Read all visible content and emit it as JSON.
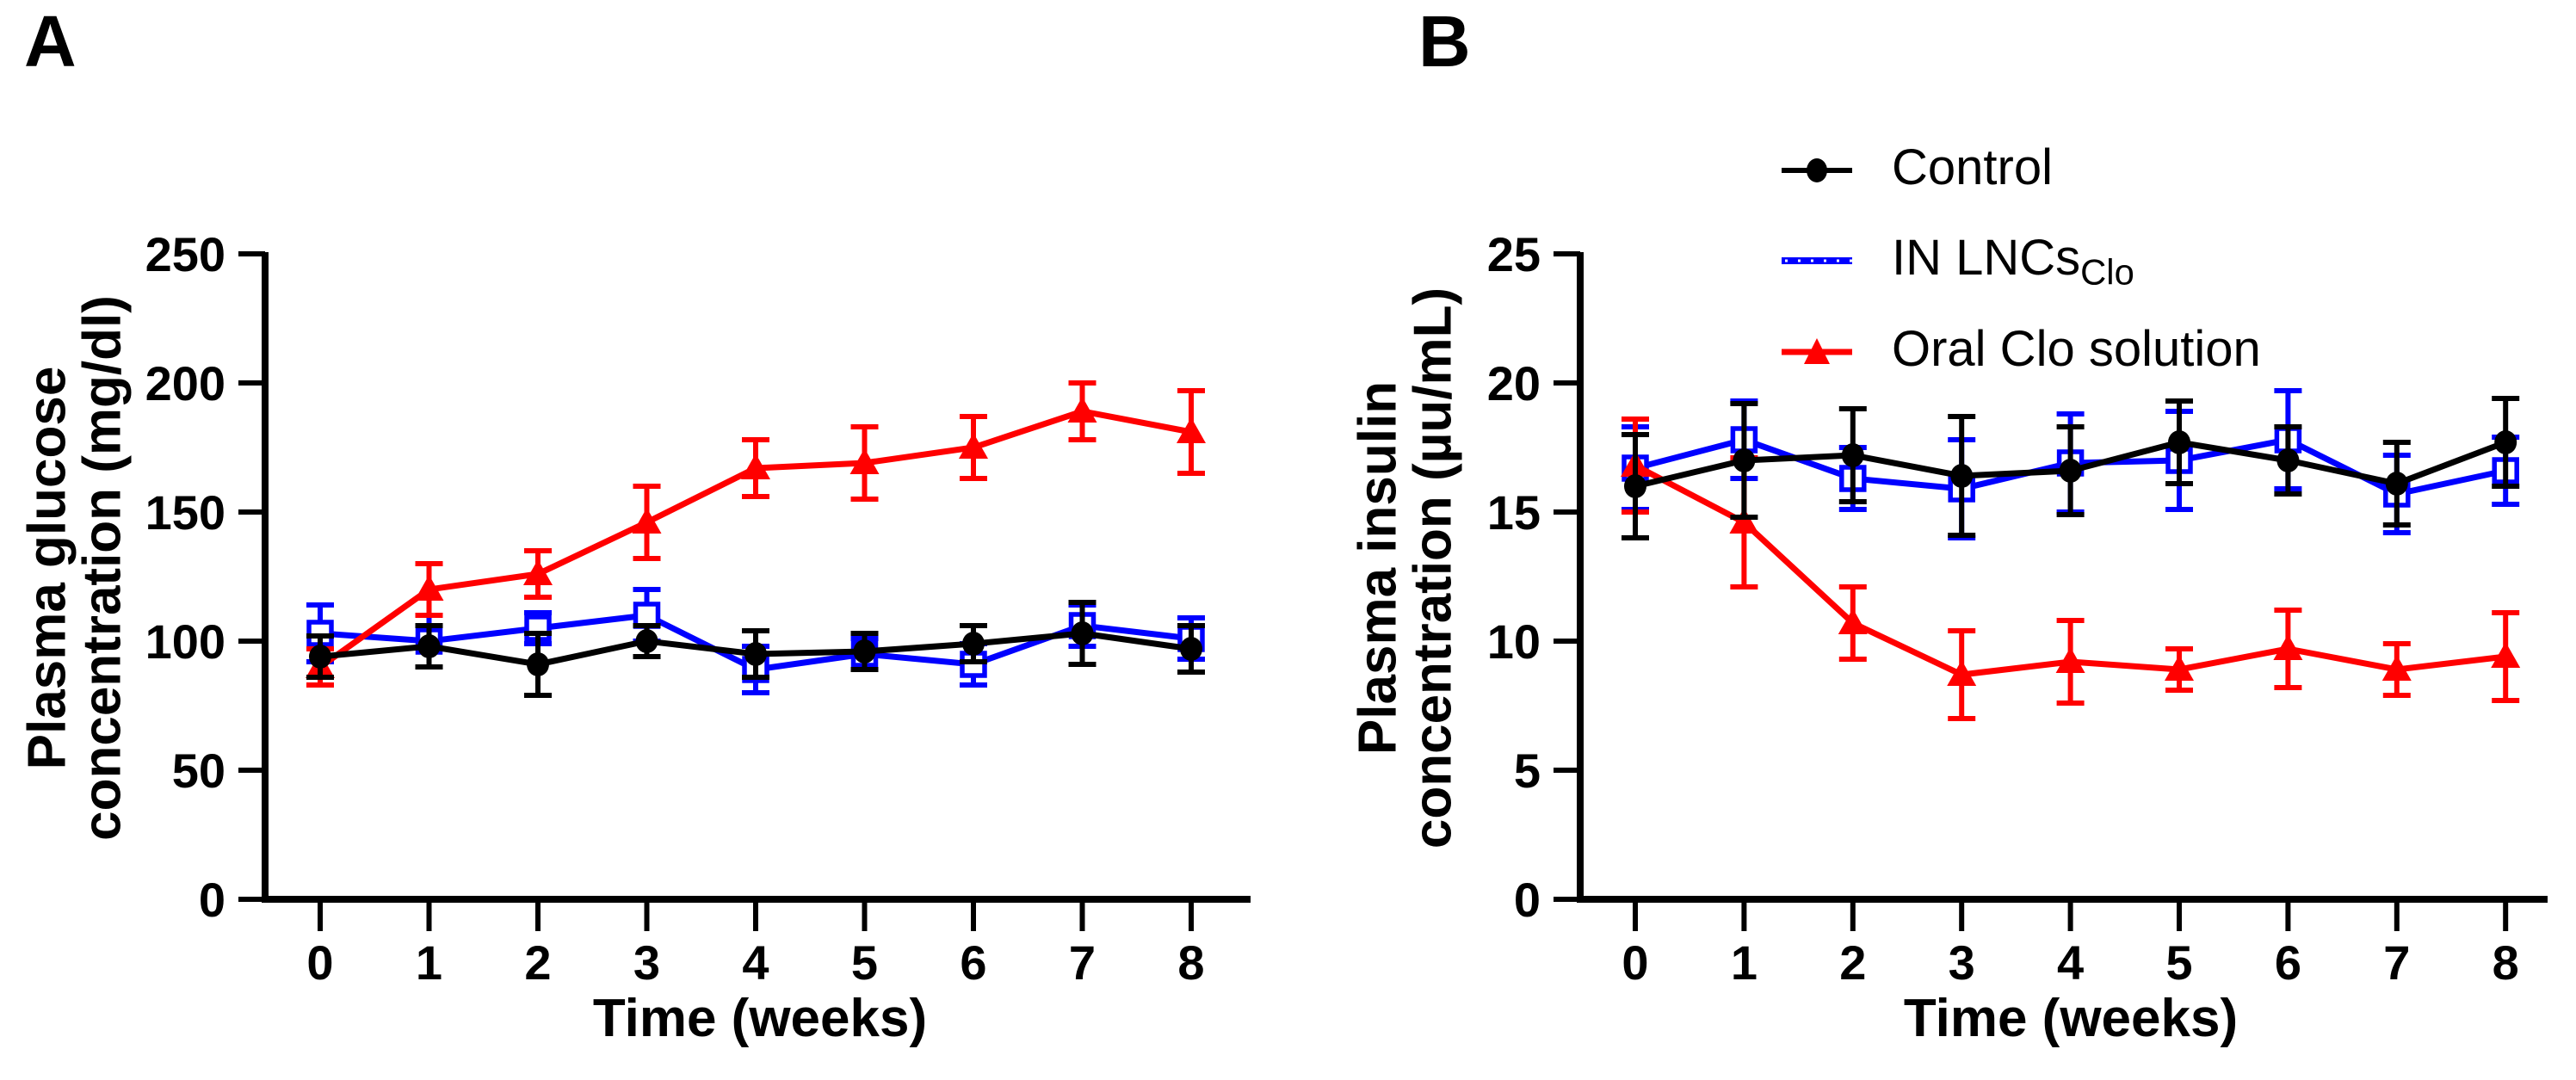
{
  "figure": {
    "panels": [
      {
        "letter": "A",
        "ylabel_line1": "Plasma glucose",
        "ylabel_line2": "concentration (mg/dl)",
        "xlabel": "Time (weeks)"
      },
      {
        "letter": "B",
        "ylabel_line1": "Plasma insulin",
        "ylabel_line2": "concentration (µu/mL)",
        "xlabel": "Time (weeks)"
      }
    ],
    "legend": {
      "items": [
        {
          "label": "Control",
          "sub": "",
          "color": "#000000",
          "marker": "filled-circle"
        },
        {
          "label": "IN LNCs",
          "sub": "Clo",
          "color": "#0000ff",
          "marker": "line"
        },
        {
          "label": "Oral Clo solution",
          "sub": "",
          "color": "#ff0000",
          "marker": "filled-triangle"
        }
      ]
    },
    "colors": {
      "control": "#000000",
      "lncs": "#0000ff",
      "oral": "#ff0000",
      "axis": "#000000",
      "background": "#ffffff"
    }
  },
  "chart_data": [
    {
      "type": "line",
      "panel": "A",
      "title": "A",
      "xlabel": "Time (weeks)",
      "ylabel": "Plasma glucose concentration (mg/dl)",
      "x": [
        0,
        1,
        2,
        3,
        4,
        5,
        6,
        7,
        8
      ],
      "xticks": [
        0,
        1,
        2,
        3,
        4,
        5,
        6,
        7,
        8
      ],
      "yticks": [
        0,
        50,
        100,
        150,
        200,
        250
      ],
      "ylim": [
        0,
        250
      ],
      "xlim": [
        0,
        8
      ],
      "grid": false,
      "error_bars": true,
      "series": [
        {
          "name": "Control",
          "color": "#000000",
          "marker": "filled-circle",
          "values": [
            94,
            98,
            91,
            100,
            95,
            96,
            99,
            103,
            97
          ],
          "errors": [
            8,
            8,
            12,
            6,
            9,
            7,
            7,
            12,
            9
          ]
        },
        {
          "name": "IN LNCsClo",
          "color": "#0000ff",
          "marker": "open-square",
          "values": [
            103,
            100,
            105,
            110,
            89,
            95,
            91,
            106,
            101
          ],
          "errors": [
            11,
            10,
            6,
            10,
            9,
            6,
            8,
            8,
            8
          ]
        },
        {
          "name": "Oral Clo solution",
          "color": "#ff0000",
          "marker": "filled-triangle",
          "values": [
            90,
            120,
            126,
            146,
            167,
            169,
            175,
            189,
            181
          ],
          "errors": [
            7,
            10,
            9,
            14,
            11,
            14,
            12,
            11,
            16
          ]
        }
      ]
    },
    {
      "type": "line",
      "panel": "B",
      "title": "B",
      "xlabel": "Time (weeks)",
      "ylabel": "Plasma insulin concentration (µu/mL)",
      "x": [
        0,
        1,
        2,
        3,
        4,
        5,
        6,
        7,
        8
      ],
      "xticks": [
        0,
        1,
        2,
        3,
        4,
        5,
        6,
        7,
        8
      ],
      "yticks": [
        0,
        5,
        10,
        15,
        20,
        25
      ],
      "ylim": [
        0,
        25
      ],
      "xlim": [
        0,
        8
      ],
      "grid": false,
      "error_bars": true,
      "legend_position": "top",
      "series": [
        {
          "name": "Control",
          "color": "#000000",
          "marker": "filled-circle",
          "values": [
            16.0,
            17.0,
            17.2,
            16.4,
            16.6,
            17.7,
            17.0,
            16.1,
            17.7
          ],
          "errors": [
            2.0,
            2.2,
            1.8,
            2.3,
            1.7,
            1.6,
            1.3,
            1.6,
            1.7
          ]
        },
        {
          "name": "IN LNCsClo",
          "color": "#0000ff",
          "marker": "open-square",
          "values": [
            16.7,
            17.8,
            16.3,
            15.9,
            16.9,
            17.0,
            17.8,
            15.7,
            16.6
          ],
          "errors": [
            1.6,
            1.5,
            1.2,
            1.9,
            1.9,
            1.9,
            1.9,
            1.5,
            1.3
          ]
        },
        {
          "name": "Oral Clo solution",
          "color": "#ff0000",
          "marker": "filled-triangle",
          "values": [
            16.8,
            14.6,
            10.7,
            8.7,
            9.2,
            8.9,
            9.7,
            8.9,
            9.4
          ],
          "errors": [
            1.8,
            2.5,
            1.4,
            1.7,
            1.6,
            0.8,
            1.5,
            1.0,
            1.7
          ]
        }
      ]
    }
  ]
}
